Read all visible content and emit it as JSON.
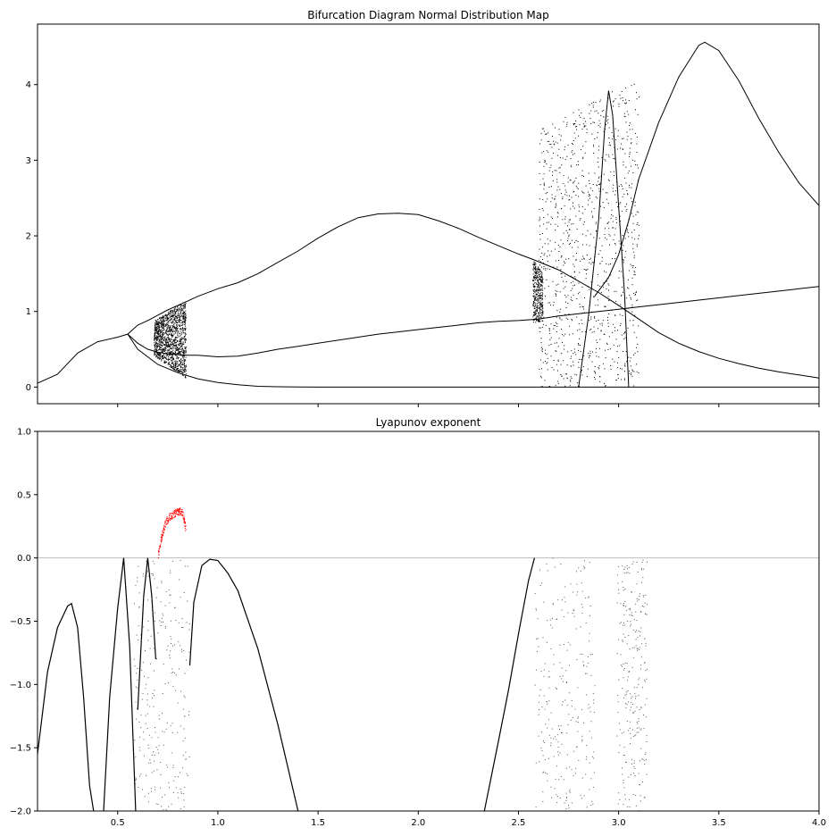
{
  "chart_data": [
    {
      "type": "scatter",
      "title": "Bifurcation Diagram Normal Distribution Map",
      "xlabel": "",
      "ylabel": "",
      "xlim": [
        0.1,
        4.0
      ],
      "ylim": [
        -0.22,
        4.8
      ],
      "x_ticks": [
        0.5,
        1.0,
        1.5,
        2.0,
        2.5,
        3.0,
        3.5,
        4.0
      ],
      "y_ticks": [
        0,
        1,
        2,
        3,
        4
      ],
      "y_tick_labels": [
        "0",
        "1",
        "2",
        "3",
        "4"
      ],
      "x_tick_labels_visible": false,
      "grid": false,
      "colors": {
        "points": "#000000"
      },
      "series": [
        {
          "curves": [
            {
              "x": [
                0.1,
                0.2,
                0.3,
                0.4,
                0.5,
                0.55
              ],
              "y": [
                0.05,
                0.17,
                0.45,
                0.6,
                0.66,
                0.7
              ]
            },
            {
              "x": [
                0.55,
                0.6,
                0.65,
                0.7,
                0.75,
                0.8,
                0.85,
                0.9,
                1.0,
                1.1,
                1.2,
                1.3,
                1.4,
                1.5,
                1.6,
                1.7,
                1.8,
                1.9,
                2.0,
                2.1,
                2.2,
                2.3,
                2.4,
                2.5,
                2.58
              ],
              "y": [
                0.7,
                0.82,
                0.88,
                0.95,
                1.02,
                1.08,
                1.14,
                1.2,
                1.3,
                1.38,
                1.5,
                1.65,
                1.8,
                1.97,
                2.12,
                2.24,
                2.29,
                2.3,
                2.28,
                2.2,
                2.1,
                1.98,
                1.87,
                1.76,
                1.68
              ]
            },
            {
              "x": [
                0.55,
                0.6,
                0.65,
                0.7,
                0.75,
                0.8,
                0.85,
                0.9,
                1.0,
                1.1,
                1.2,
                1.3,
                1.4,
                1.5,
                1.6,
                1.7,
                1.8,
                1.9,
                2.0,
                2.1,
                2.2,
                2.3,
                2.4,
                2.5,
                2.6,
                2.7,
                2.8,
                2.9,
                3.0,
                3.1,
                3.2,
                3.3,
                3.4,
                3.5,
                3.6,
                3.7,
                3.8,
                3.9,
                4.0
              ],
              "y": [
                0.7,
                0.58,
                0.5,
                0.46,
                0.44,
                0.43,
                0.42,
                0.42,
                0.4,
                0.41,
                0.45,
                0.5,
                0.54,
                0.58,
                0.62,
                0.66,
                0.7,
                0.73,
                0.76,
                0.79,
                0.82,
                0.85,
                0.87,
                0.88,
                0.9,
                0.94,
                0.97,
                1.0,
                1.03,
                1.06,
                1.09,
                1.12,
                1.15,
                1.18,
                1.21,
                1.24,
                1.27,
                1.3,
                1.33
              ]
            },
            {
              "x": [
                0.55,
                0.6,
                0.7,
                0.8,
                0.9,
                1.0,
                1.1,
                1.2,
                1.3,
                1.4,
                1.5,
                2.0,
                2.5,
                3.0,
                3.5,
                4.0
              ],
              "y": [
                0.7,
                0.5,
                0.3,
                0.19,
                0.11,
                0.06,
                0.03,
                0.01,
                0.005,
                0.002,
                0.0,
                0.0,
                0.0,
                0.0,
                0.0,
                0.0
              ]
            },
            {
              "x": [
                2.58,
                2.7,
                2.8,
                2.9,
                3.0,
                3.1,
                3.2,
                3.3,
                3.4,
                3.5,
                3.6,
                3.7,
                3.8,
                3.9,
                4.0
              ],
              "y": [
                1.68,
                1.55,
                1.4,
                1.25,
                1.08,
                0.9,
                0.72,
                0.58,
                0.47,
                0.38,
                0.31,
                0.25,
                0.2,
                0.16,
                0.12
              ]
            },
            {
              "x": [
                2.88,
                2.95,
                3.0,
                3.05,
                3.1,
                3.2,
                3.3,
                3.4,
                3.43,
                3.5,
                3.6,
                3.7,
                3.8,
                3.9,
                4.0
              ],
              "y": [
                1.2,
                1.45,
                1.75,
                2.2,
                2.75,
                3.5,
                4.1,
                4.52,
                4.56,
                4.45,
                4.05,
                3.55,
                3.1,
                2.7,
                2.4
              ]
            },
            {
              "x": [
                2.8,
                2.85,
                2.9,
                2.93,
                2.95,
                2.97,
                3.0,
                3.03,
                3.05
              ],
              "y": [
                0.0,
                0.95,
                2.2,
                3.4,
                3.92,
                3.6,
                2.4,
                1.2,
                0.0
              ]
            }
          ],
          "bands": [
            {
              "x": [
                0.68,
                0.84
              ],
              "y_upper": [
                0.88,
                1.15
              ],
              "y_lower": [
                0.42,
                0.12
              ]
            },
            {
              "x": [
                2.57,
                2.62
              ],
              "y_upper": [
                1.7,
                1.5
              ],
              "y_lower": [
                0.85,
                0.88
              ]
            },
            {
              "x": [
                2.6,
                3.1
              ],
              "y_upper": [
                3.4,
                4.1
              ],
              "y_lower": [
                0.0,
                0.0
              ]
            }
          ]
        }
      ]
    },
    {
      "type": "scatter",
      "title": "Lyapunov exponent",
      "xlabel": "",
      "ylabel": "",
      "xlim": [
        0.1,
        4.0
      ],
      "ylim": [
        -2.0,
        1.0
      ],
      "x_ticks": [
        0.5,
        1.0,
        1.5,
        2.0,
        2.5,
        3.0,
        3.5,
        4.0
      ],
      "x_tick_labels": [
        "0.5",
        "1.0",
        "1.5",
        "2.0",
        "2.5",
        "3.0",
        "3.5",
        "4.0"
      ],
      "y_ticks": [
        -2.0,
        -1.5,
        -1.0,
        -0.5,
        0.0,
        0.5,
        1.0
      ],
      "y_tick_labels": [
        "−2.0",
        "−1.5",
        "−1.0",
        "−0.5",
        "0.0",
        "0.5",
        "1.0"
      ],
      "reference_line": {
        "y": 0.0,
        "color": "#bdbdbd"
      },
      "grid": false,
      "colors": {
        "negative": "#000000",
        "positive": "#ff0000"
      },
      "series": [
        {
          "segments": [
            {
              "x": [
                0.1,
                0.15,
                0.2,
                0.25,
                0.27,
                0.3,
                0.33,
                0.36,
                0.38
              ],
              "y": [
                -1.55,
                -0.9,
                -0.55,
                -0.38,
                -0.36,
                -0.55,
                -1.1,
                -1.8,
                -2.0
              ]
            },
            {
              "x": [
                0.43,
                0.46,
                0.5,
                0.53,
                0.56,
                0.59
              ],
              "y": [
                -2.0,
                -1.1,
                -0.4,
                0.0,
                -0.7,
                -2.0
              ]
            },
            {
              "x": [
                0.6,
                0.63,
                0.65,
                0.67,
                0.69
              ],
              "y": [
                -1.2,
                -0.3,
                0.0,
                -0.3,
                -0.8
              ]
            },
            {
              "x": [
                0.86,
                0.88,
                0.92,
                0.96,
                1.0,
                1.05,
                1.1,
                1.2,
                1.3,
                1.4
              ],
              "y": [
                -0.85,
                -0.35,
                -0.06,
                -0.01,
                -0.02,
                -0.12,
                -0.26,
                -0.72,
                -1.32,
                -2.0
              ]
            },
            {
              "x": [
                2.33,
                2.4,
                2.45,
                2.5,
                2.55,
                2.58
              ],
              "y": [
                -2.0,
                -1.45,
                -1.05,
                -0.6,
                -0.18,
                0.0
              ]
            }
          ],
          "positive_region": {
            "x": [
              0.7,
              0.72,
              0.74,
              0.76,
              0.78,
              0.8,
              0.82,
              0.84
            ],
            "y": [
              0.05,
              0.22,
              0.32,
              0.36,
              0.38,
              0.4,
              0.4,
              0.25
            ]
          },
          "scatter_ranges": [
            {
              "x": [
                0.58,
                0.86
              ],
              "y": [
                -2.0,
                0.0
              ]
            },
            {
              "x": [
                2.58,
                2.88
              ],
              "y": [
                -2.0,
                0.0
              ]
            },
            {
              "x": [
                2.99,
                3.14
              ],
              "y": [
                -2.0,
                0.0
              ]
            }
          ]
        }
      ]
    }
  ]
}
